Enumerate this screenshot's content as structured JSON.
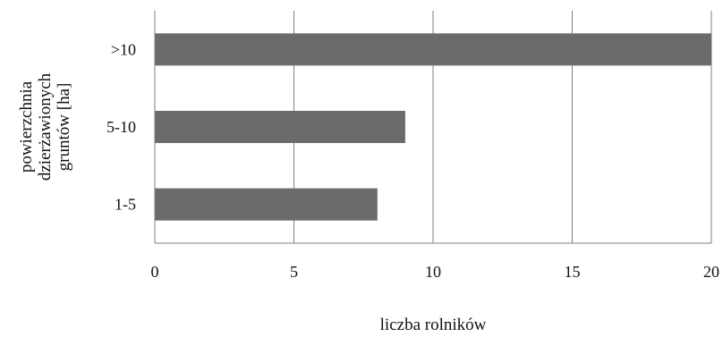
{
  "chart_data": {
    "type": "bar",
    "orientation": "horizontal",
    "categories": [
      "1-5",
      "5-10",
      ">10"
    ],
    "values": [
      8,
      9,
      20
    ],
    "xlabel": "liczba rolników",
    "ylabel_lines": [
      "powierzchnia",
      "dzierżawionych",
      "gruntów [ha]"
    ],
    "xticks": [
      "0",
      "5",
      "10",
      "15",
      "20"
    ],
    "xlim": [
      0,
      20
    ],
    "grid": "vertical",
    "legend": "none",
    "bar_color": "#6b6b6b",
    "grid_color": "#7f7f7f"
  }
}
